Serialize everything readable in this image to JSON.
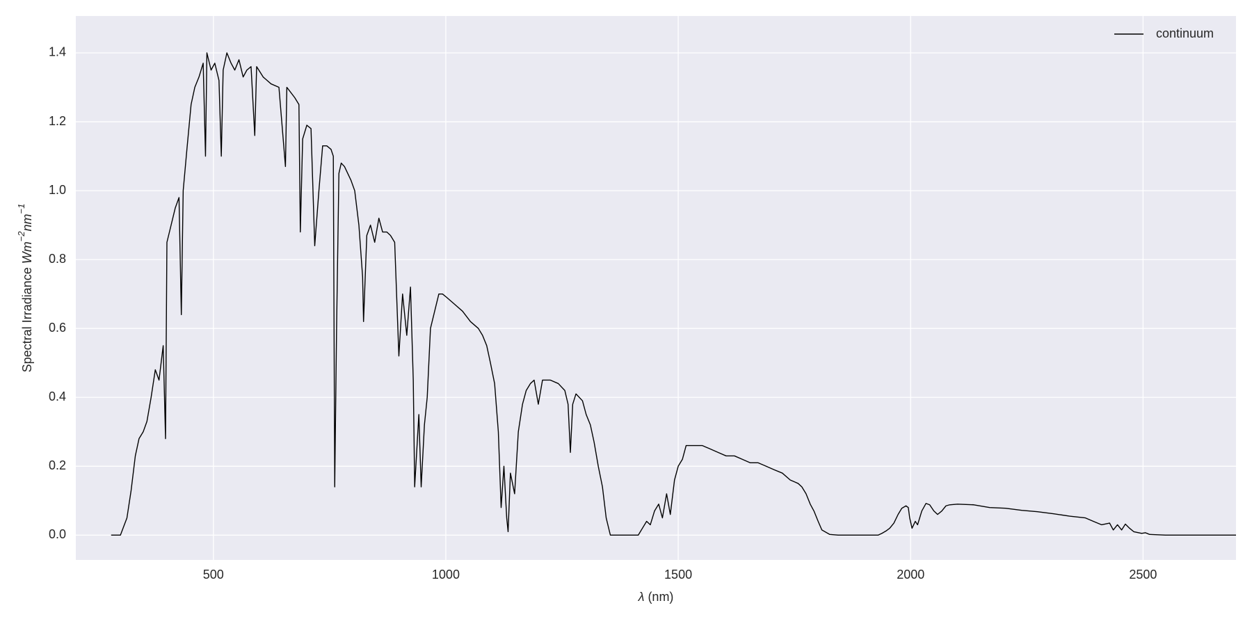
{
  "chart_data": {
    "type": "line",
    "xlabel_symbol": "λ",
    "xlabel": "(nm)",
    "ylabel": "Spectral Irradiance",
    "ylabel_unit": [
      {
        "base": "Wm",
        "sup": "−2"
      },
      {
        "base": "nm",
        "sup": "−1"
      }
    ],
    "xlim": [
      204,
      2700
    ],
    "ylim": [
      -0.072,
      1.507
    ],
    "xticks": [
      500,
      1000,
      1500,
      2000,
      2500
    ],
    "yticks": [
      {
        "value": 0,
        "label": "0.0"
      },
      0.2,
      0.4,
      0.6,
      0.8,
      {
        "value": 1,
        "label": "1.0"
      },
      1.2,
      1.4
    ],
    "grid": true,
    "legend": "upper right",
    "x": [
      280,
      300,
      314,
      323,
      332,
      340,
      349,
      357,
      366,
      375,
      383,
      392,
      397,
      400,
      409,
      418,
      426,
      431,
      435,
      443,
      452,
      460,
      469,
      478,
      483,
      486,
      495,
      503,
      512,
      517,
      521,
      529,
      538,
      546,
      555,
      564,
      572,
      581,
      589,
      593,
      607,
      624,
      641,
      655,
      658,
      675,
      684,
      687,
      692,
      701,
      710,
      718,
      727,
      735,
      744,
      753,
      758,
      761,
      765,
      770,
      775,
      782,
      796,
      804,
      813,
      821,
      823,
      830,
      838,
      847,
      856,
      864,
      873,
      881,
      890,
      899,
      907,
      916,
      924,
      930,
      933,
      942,
      947,
      954,
      960,
      967,
      976,
      985,
      993,
      1002,
      1019,
      1036,
      1053,
      1070,
      1079,
      1088,
      1096,
      1105,
      1113,
      1119,
      1125,
      1131,
      1134,
      1139,
      1148,
      1156,
      1165,
      1173,
      1182,
      1190,
      1199,
      1208,
      1225,
      1242,
      1256,
      1263,
      1268,
      1273,
      1280,
      1294,
      1302,
      1311,
      1319,
      1328,
      1337,
      1345,
      1354,
      1414,
      1423,
      1432,
      1440,
      1449,
      1458,
      1466,
      1475,
      1483,
      1492,
      1500,
      1509,
      1517,
      1535,
      1552,
      1569,
      1586,
      1603,
      1621,
      1638,
      1655,
      1672,
      1689,
      1706,
      1724,
      1741,
      1758,
      1766,
      1775,
      1784,
      1792,
      1801,
      1809,
      1826,
      1844,
      1930,
      1938,
      1947,
      1955,
      1964,
      1973,
      1981,
      1990,
      1995,
      1998,
      2003,
      2010,
      2015,
      2024,
      2033,
      2041,
      2050,
      2058,
      2067,
      2076,
      2084,
      2101,
      2136,
      2170,
      2204,
      2239,
      2273,
      2308,
      2342,
      2376,
      2393,
      2411,
      2428,
      2436,
      2445,
      2454,
      2462,
      2471,
      2480,
      2497,
      2505,
      2514,
      2548,
      2700
    ],
    "series": [
      {
        "name": "continuum",
        "color": "#000000",
        "values": [
          0,
          0,
          0.05,
          0.13,
          0.23,
          0.28,
          0.3,
          0.33,
          0.4,
          0.48,
          0.45,
          0.55,
          0.28,
          0.85,
          0.9,
          0.95,
          0.98,
          0.64,
          1.0,
          1.12,
          1.25,
          1.3,
          1.33,
          1.37,
          1.1,
          1.4,
          1.35,
          1.37,
          1.32,
          1.1,
          1.35,
          1.4,
          1.37,
          1.35,
          1.38,
          1.33,
          1.35,
          1.36,
          1.16,
          1.36,
          1.33,
          1.31,
          1.3,
          1.07,
          1.3,
          1.27,
          1.25,
          0.88,
          1.15,
          1.19,
          1.18,
          0.84,
          1.0,
          1.13,
          1.13,
          1.12,
          1.1,
          0.14,
          0.6,
          1.05,
          1.08,
          1.07,
          1.03,
          1.0,
          0.9,
          0.75,
          0.62,
          0.87,
          0.9,
          0.85,
          0.92,
          0.88,
          0.88,
          0.87,
          0.85,
          0.52,
          0.7,
          0.58,
          0.72,
          0.45,
          0.14,
          0.35,
          0.14,
          0.32,
          0.4,
          0.6,
          0.65,
          0.7,
          0.7,
          0.69,
          0.67,
          0.65,
          0.62,
          0.6,
          0.58,
          0.55,
          0.5,
          0.44,
          0.3,
          0.08,
          0.2,
          0.05,
          0.01,
          0.18,
          0.12,
          0.3,
          0.38,
          0.42,
          0.44,
          0.45,
          0.38,
          0.45,
          0.45,
          0.44,
          0.42,
          0.38,
          0.24,
          0.38,
          0.41,
          0.39,
          0.35,
          0.32,
          0.27,
          0.2,
          0.14,
          0.05,
          0,
          0,
          0.02,
          0.04,
          0.03,
          0.07,
          0.09,
          0.05,
          0.12,
          0.06,
          0.16,
          0.2,
          0.22,
          0.26,
          0.26,
          0.26,
          0.25,
          0.24,
          0.23,
          0.23,
          0.22,
          0.21,
          0.21,
          0.2,
          0.19,
          0.18,
          0.16,
          0.15,
          0.14,
          0.12,
          0.09,
          0.07,
          0.04,
          0.015,
          0.002,
          0,
          0,
          0.005,
          0.012,
          0.02,
          0.035,
          0.06,
          0.078,
          0.085,
          0.08,
          0.05,
          0.02,
          0.04,
          0.03,
          0.07,
          0.092,
          0.088,
          0.07,
          0.06,
          0.07,
          0.085,
          0.088,
          0.09,
          0.088,
          0.08,
          0.078,
          0.072,
          0.068,
          0.062,
          0.055,
          0.05,
          0.04,
          0.03,
          0.035,
          0.015,
          0.03,
          0.015,
          0.032,
          0.02,
          0.01,
          0.005,
          0.007,
          0.002,
          0,
          0
        ]
      }
    ]
  }
}
